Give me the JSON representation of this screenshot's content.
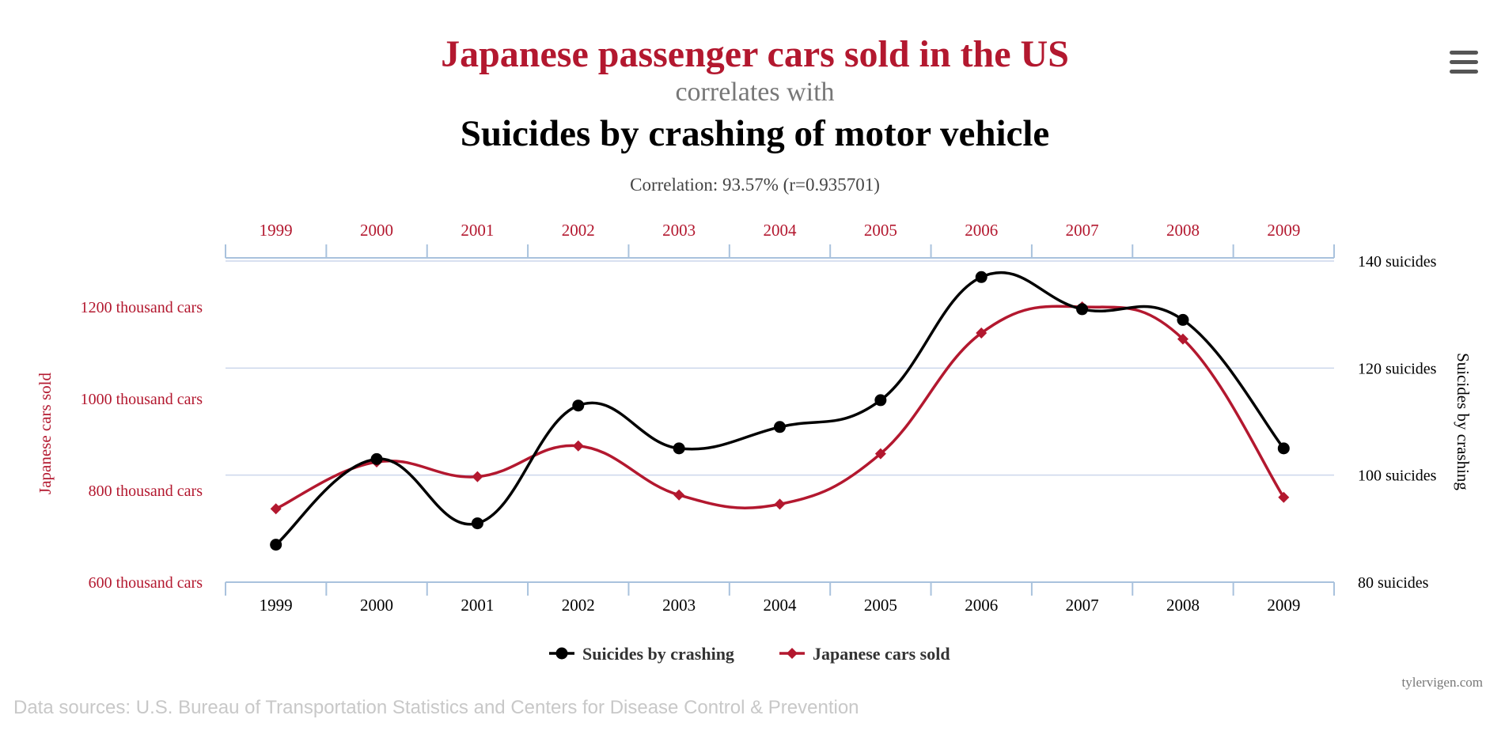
{
  "title_primary": "Japanese passenger cars sold in the US",
  "title_connector": "correlates with",
  "title_secondary": "Suicides by crashing of motor vehicle",
  "correlation_text": "Correlation: 93.57% (r=0.935701)",
  "menu_icon": "hamburger-menu-icon",
  "credit": "tylervigen.com",
  "sources": "Data sources: U.S. Bureau of Transportation Statistics and Centers for Disease Control & Prevention",
  "colors": {
    "red": "#b3182f",
    "black": "#000000",
    "grid": "#ccd6eb",
    "axis": "#a9c2dd",
    "connector": "#777777"
  },
  "chart_data": {
    "type": "line",
    "categories": [
      "1999",
      "2000",
      "2001",
      "2002",
      "2003",
      "2004",
      "2005",
      "2006",
      "2007",
      "2008",
      "2009"
    ],
    "series": [
      {
        "name": "Suicides by crashing",
        "axis": "right",
        "color": "#000000",
        "marker": "circle",
        "values": [
          87,
          103,
          91,
          113,
          105,
          109,
          114,
          137,
          131,
          129,
          105
        ]
      },
      {
        "name": "Japanese cars sold",
        "axis": "left",
        "color": "#b3182f",
        "marker": "diamond",
        "values": [
          760,
          862,
          830,
          897,
          790,
          770,
          880,
          1143,
          1200,
          1130,
          785
        ]
      }
    ],
    "left_axis": {
      "label": "Japanese cars sold",
      "range": [
        600,
        1300
      ],
      "ticks": [
        600,
        800,
        1000,
        1200
      ],
      "tick_labels": [
        "600 thousand cars",
        "800 thousand cars",
        "1000 thousand cars",
        "1200 thousand cars"
      ]
    },
    "right_axis": {
      "label": "Suicides by crashing",
      "range": [
        80,
        140
      ],
      "ticks": [
        80,
        100,
        120,
        140
      ],
      "tick_labels": [
        "80 suicides",
        "100 suicides",
        "120 suicides",
        "140 suicides"
      ]
    },
    "grid": true,
    "legend": {
      "position": "bottom-center",
      "items": [
        "Suicides by crashing",
        "Japanese cars sold"
      ]
    }
  }
}
